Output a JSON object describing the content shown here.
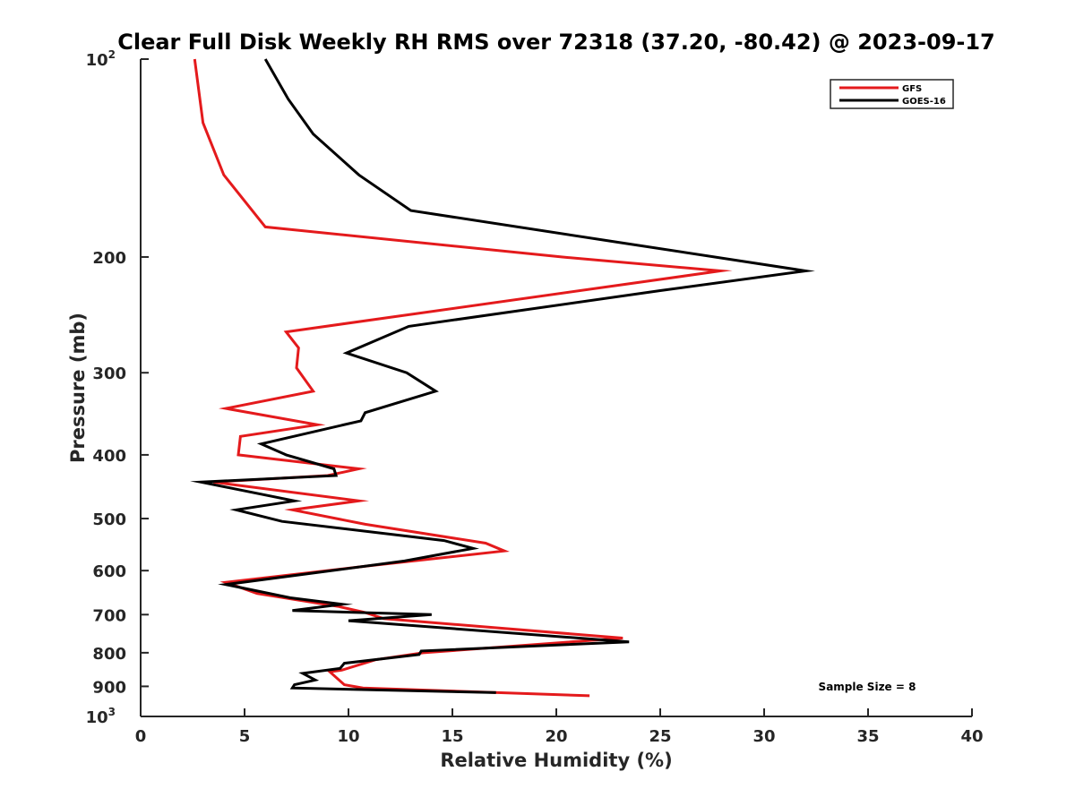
{
  "chart_data": {
    "type": "line",
    "title": "Clear Full Disk Weekly RH RMS over 72318 (37.20, -80.42) @ 2023-09-17",
    "xlabel": "Relative Humidity (%)",
    "ylabel": "Pressure (mb)",
    "xlim": [
      0,
      40
    ],
    "ylim": [
      100,
      1000
    ],
    "yscale": "log",
    "y_reversed": true,
    "grid": false,
    "legend_position": "top-right",
    "x_ticks": [
      0,
      5,
      10,
      15,
      20,
      25,
      30,
      35,
      40
    ],
    "y_ticks": [
      {
        "value": 100,
        "label": "10",
        "exp": "2"
      },
      {
        "value": 200,
        "label": "200"
      },
      {
        "value": 300,
        "label": "300"
      },
      {
        "value": 400,
        "label": "400"
      },
      {
        "value": 500,
        "label": "500"
      },
      {
        "value": 600,
        "label": "600"
      },
      {
        "value": 700,
        "label": "700"
      },
      {
        "value": 800,
        "label": "800"
      },
      {
        "value": 900,
        "label": "900"
      },
      {
        "value": 1000,
        "label": "10",
        "exp": "3"
      }
    ],
    "annotation": "Sample Size = 8",
    "series": [
      {
        "name": "GFS",
        "color": "#e41a1c",
        "points": [
          [
            2.6,
            100
          ],
          [
            3.0,
            125
          ],
          [
            4.0,
            150
          ],
          [
            6.0,
            180
          ],
          [
            20.3,
            200
          ],
          [
            27.9,
            210
          ],
          [
            7.0,
            260
          ],
          [
            7.6,
            275
          ],
          [
            7.5,
            295
          ],
          [
            8.3,
            320
          ],
          [
            4.1,
            340
          ],
          [
            8.5,
            360
          ],
          [
            4.8,
            375
          ],
          [
            4.7,
            400
          ],
          [
            10.5,
            420
          ],
          [
            9.0,
            430
          ],
          [
            3.5,
            440
          ],
          [
            10.5,
            470
          ],
          [
            7.3,
            485
          ],
          [
            10.8,
            510
          ],
          [
            16.6,
            545
          ],
          [
            17.5,
            560
          ],
          [
            11.0,
            590
          ],
          [
            4.1,
            625
          ],
          [
            5.6,
            650
          ],
          [
            9.5,
            680
          ],
          [
            10.8,
            695
          ],
          [
            11.7,
            710
          ],
          [
            23.2,
            760
          ],
          [
            13.6,
            800
          ],
          [
            11.3,
            820
          ],
          [
            9.7,
            850
          ],
          [
            9.1,
            855
          ],
          [
            9.8,
            895
          ],
          [
            10.7,
            905
          ],
          [
            21.6,
            930
          ]
        ]
      },
      {
        "name": "GOES-16",
        "color": "#000000",
        "points": [
          [
            6.0,
            100
          ],
          [
            7.1,
            115
          ],
          [
            8.3,
            130
          ],
          [
            10.5,
            150
          ],
          [
            13.0,
            170
          ],
          [
            23.0,
            190
          ],
          [
            32.0,
            210
          ],
          [
            25.0,
            225
          ],
          [
            12.9,
            255
          ],
          [
            9.9,
            280
          ],
          [
            12.8,
            300
          ],
          [
            14.2,
            320
          ],
          [
            10.8,
            345
          ],
          [
            10.6,
            355
          ],
          [
            5.8,
            385
          ],
          [
            7.0,
            400
          ],
          [
            9.3,
            420
          ],
          [
            9.4,
            430
          ],
          [
            2.9,
            440
          ],
          [
            7.4,
            470
          ],
          [
            4.6,
            485
          ],
          [
            6.8,
            505
          ],
          [
            14.6,
            540
          ],
          [
            16.0,
            555
          ],
          [
            12.7,
            580
          ],
          [
            4.1,
            630
          ],
          [
            7.2,
            660
          ],
          [
            9.7,
            675
          ],
          [
            7.3,
            690
          ],
          [
            14.0,
            700
          ],
          [
            10.0,
            715
          ],
          [
            23.5,
            770
          ],
          [
            13.5,
            795
          ],
          [
            13.4,
            805
          ],
          [
            9.8,
            830
          ],
          [
            9.6,
            845
          ],
          [
            7.8,
            860
          ],
          [
            8.4,
            880
          ],
          [
            7.4,
            895
          ],
          [
            7.3,
            905
          ],
          [
            17.1,
            920
          ]
        ]
      }
    ]
  }
}
